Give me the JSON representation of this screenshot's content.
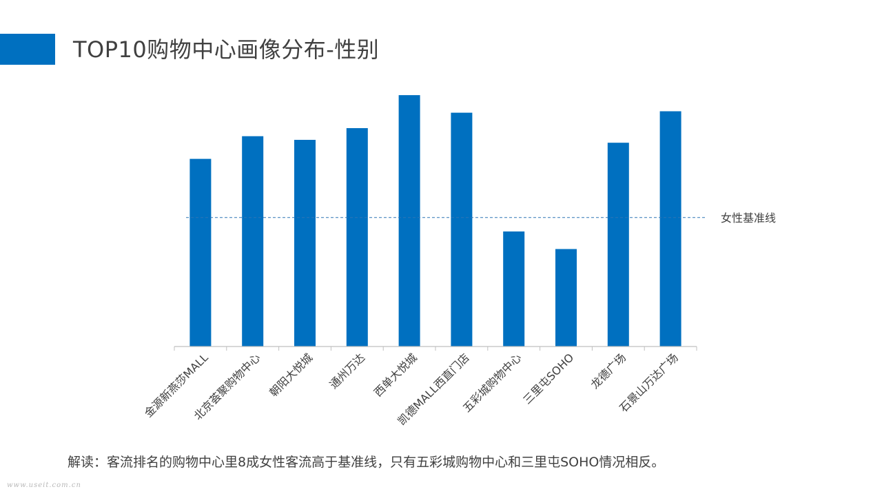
{
  "header": {
    "title": "TOP10购物中心画像分布-性别"
  },
  "chart_data": {
    "type": "bar",
    "categories": [
      "金源新燕莎MALL",
      "北京荟聚购物中心",
      "朝阳大悦城",
      "通州万达",
      "西单大悦城",
      "凯德MALL西直门店",
      "五彩城购物中心",
      "三里屯SOHO",
      "龙德广场",
      "石景山万达广场"
    ],
    "values": [
      256,
      287,
      282,
      298,
      343,
      319,
      157,
      133,
      278,
      321
    ],
    "ylim": [
      0,
      360
    ],
    "baseline": {
      "value": 176,
      "label": "女性基准线"
    },
    "bar_color": "#0070c0",
    "baseline_color": "#2e75b6",
    "grid": false,
    "legend": "none"
  },
  "footer": {
    "note": "解读：客流排名的购物中心里8成女性客流高于基准线，只有五彩城购物中心和三里屯SOHO情况相反。",
    "watermark": "www.useit.com.cn"
  }
}
